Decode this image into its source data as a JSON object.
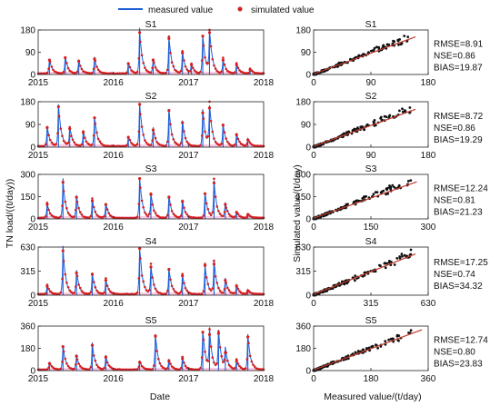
{
  "legend": {
    "measured": "measured value",
    "simulated": "simulated value"
  },
  "colors": {
    "measured": "#1f5fd6",
    "simulated": "#d42020",
    "fit": "#c0392b",
    "scatter": "#111111",
    "pink": "#f06ab8"
  },
  "labels": {
    "ts_ylabel": "TN load/((t/day))",
    "ts_xlabel": "Date",
    "sc_ylabel": "Simulated value/(t/day)",
    "sc_xlabel": "Measured value/(t/day)"
  },
  "chart_data": [
    {
      "type": "line",
      "title": "S1",
      "xticks": [
        "2015",
        "2016",
        "2017",
        "2018"
      ],
      "yticks": [
        0,
        90,
        180
      ],
      "ylim": [
        0,
        180
      ],
      "peaks": [
        [
          0.05,
          60
        ],
        [
          0.12,
          70
        ],
        [
          0.18,
          55
        ],
        [
          0.25,
          65
        ],
        [
          0.4,
          45
        ],
        [
          0.45,
          175
        ],
        [
          0.51,
          60
        ],
        [
          0.58,
          150
        ],
        [
          0.64,
          90
        ],
        [
          0.68,
          40
        ],
        [
          0.73,
          160
        ],
        [
          0.76,
          175
        ],
        [
          0.82,
          60
        ],
        [
          0.88,
          40
        ],
        [
          0.94,
          20
        ]
      ]
    },
    {
      "type": "scatter",
      "title": "S1",
      "xticks": [
        0,
        90,
        180
      ],
      "yticks": [
        0,
        90,
        180
      ],
      "xlim": [
        0,
        180
      ],
      "ylim": [
        0,
        180
      ],
      "fit": [
        [
          0,
          2
        ],
        [
          160,
          152
        ]
      ],
      "rmse": "RMSE=8.91",
      "nse": "NSE=0.86",
      "bias": "BIAS=19.87"
    },
    {
      "type": "line",
      "title": "S2",
      "xticks": [
        "2015",
        "2016",
        "2017",
        "2018"
      ],
      "yticks": [
        0,
        90,
        180
      ],
      "ylim": [
        0,
        180
      ],
      "peaks": [
        [
          0.04,
          80
        ],
        [
          0.09,
          165
        ],
        [
          0.14,
          75
        ],
        [
          0.2,
          60
        ],
        [
          0.25,
          120
        ],
        [
          0.4,
          40
        ],
        [
          0.45,
          175
        ],
        [
          0.51,
          70
        ],
        [
          0.58,
          150
        ],
        [
          0.64,
          100
        ],
        [
          0.73,
          140
        ],
        [
          0.76,
          160
        ],
        [
          0.82,
          90
        ],
        [
          0.88,
          50
        ],
        [
          0.93,
          30
        ]
      ]
    },
    {
      "type": "scatter",
      "title": "S2",
      "xticks": [
        0,
        90,
        180
      ],
      "yticks": [
        0,
        90,
        180
      ],
      "xlim": [
        0,
        180
      ],
      "ylim": [
        0,
        180
      ],
      "fit": [
        [
          0,
          3
        ],
        [
          160,
          150
        ]
      ],
      "rmse": "RMSE=8.72",
      "nse": "NSE=0.86",
      "bias": "BIAS=19.29"
    },
    {
      "type": "line",
      "title": "S3",
      "xticks": [
        "2015",
        "2016",
        "2017",
        "2018"
      ],
      "yticks": [
        0,
        150,
        300
      ],
      "ylim": [
        0,
        300
      ],
      "peaks": [
        [
          0.04,
          100
        ],
        [
          0.11,
          255
        ],
        [
          0.17,
          150
        ],
        [
          0.24,
          125
        ],
        [
          0.3,
          100
        ],
        [
          0.45,
          280
        ],
        [
          0.5,
          170
        ],
        [
          0.58,
          150
        ],
        [
          0.64,
          120
        ],
        [
          0.74,
          175
        ],
        [
          0.78,
          250
        ],
        [
          0.83,
          100
        ],
        [
          0.88,
          45
        ],
        [
          0.93,
          30
        ]
      ]
    },
    {
      "type": "scatter",
      "title": "S3",
      "xticks": [
        0,
        150,
        300
      ],
      "yticks": [
        0,
        150,
        300
      ],
      "xlim": [
        0,
        300
      ],
      "ylim": [
        0,
        300
      ],
      "fit": [
        [
          0,
          5
        ],
        [
          270,
          250
        ]
      ],
      "rmse": "RMSE=12.24",
      "nse": "NSE=0.81",
      "bias": "BIAS=21.23"
    },
    {
      "type": "line",
      "title": "S4",
      "xticks": [
        "2015",
        "2016",
        "2017",
        "2018"
      ],
      "yticks": [
        0,
        315,
        630
      ],
      "ylim": [
        0,
        630
      ],
      "peaks": [
        [
          0.04,
          120
        ],
        [
          0.11,
          600
        ],
        [
          0.17,
          300
        ],
        [
          0.24,
          280
        ],
        [
          0.3,
          200
        ],
        [
          0.45,
          630
        ],
        [
          0.5,
          380
        ],
        [
          0.58,
          350
        ],
        [
          0.64,
          260
        ],
        [
          0.74,
          400
        ],
        [
          0.78,
          420
        ],
        [
          0.83,
          200
        ],
        [
          0.88,
          120
        ],
        [
          0.93,
          60
        ]
      ]
    },
    {
      "type": "scatter",
      "title": "S4",
      "xticks": [
        0,
        315,
        630
      ],
      "yticks": [
        0,
        315,
        630
      ],
      "xlim": [
        0,
        630
      ],
      "ylim": [
        0,
        630
      ],
      "fit": [
        [
          0,
          10
        ],
        [
          560,
          540
        ]
      ],
      "rmse": "RMSE=17.25",
      "nse": "NSE=0.74",
      "bias": "BIAS=34.32"
    },
    {
      "type": "line",
      "title": "S5",
      "xticks": [
        "2015",
        "2016",
        "2017",
        "2018"
      ],
      "yticks": [
        0,
        180,
        360
      ],
      "ylim": [
        0,
        360
      ],
      "peaks": [
        [
          0.05,
          60
        ],
        [
          0.11,
          200
        ],
        [
          0.17,
          120
        ],
        [
          0.24,
          210
        ],
        [
          0.3,
          110
        ],
        [
          0.45,
          70
        ],
        [
          0.52,
          290
        ],
        [
          0.58,
          80
        ],
        [
          0.64,
          100
        ],
        [
          0.73,
          320
        ],
        [
          0.76,
          300
        ],
        [
          0.8,
          310
        ],
        [
          0.83,
          150
        ],
        [
          0.88,
          80
        ],
        [
          0.93,
          280
        ]
      ]
    },
    {
      "type": "scatter",
      "title": "S5",
      "xticks": [
        0,
        180,
        360
      ],
      "yticks": [
        0,
        180,
        360
      ],
      "xlim": [
        0,
        360
      ],
      "ylim": [
        0,
        360
      ],
      "fit": [
        [
          0,
          5
        ],
        [
          340,
          330
        ]
      ],
      "rmse": "RMSE=12.74",
      "nse": "NSE=0.80",
      "bias": "BIAS=23.83"
    }
  ]
}
